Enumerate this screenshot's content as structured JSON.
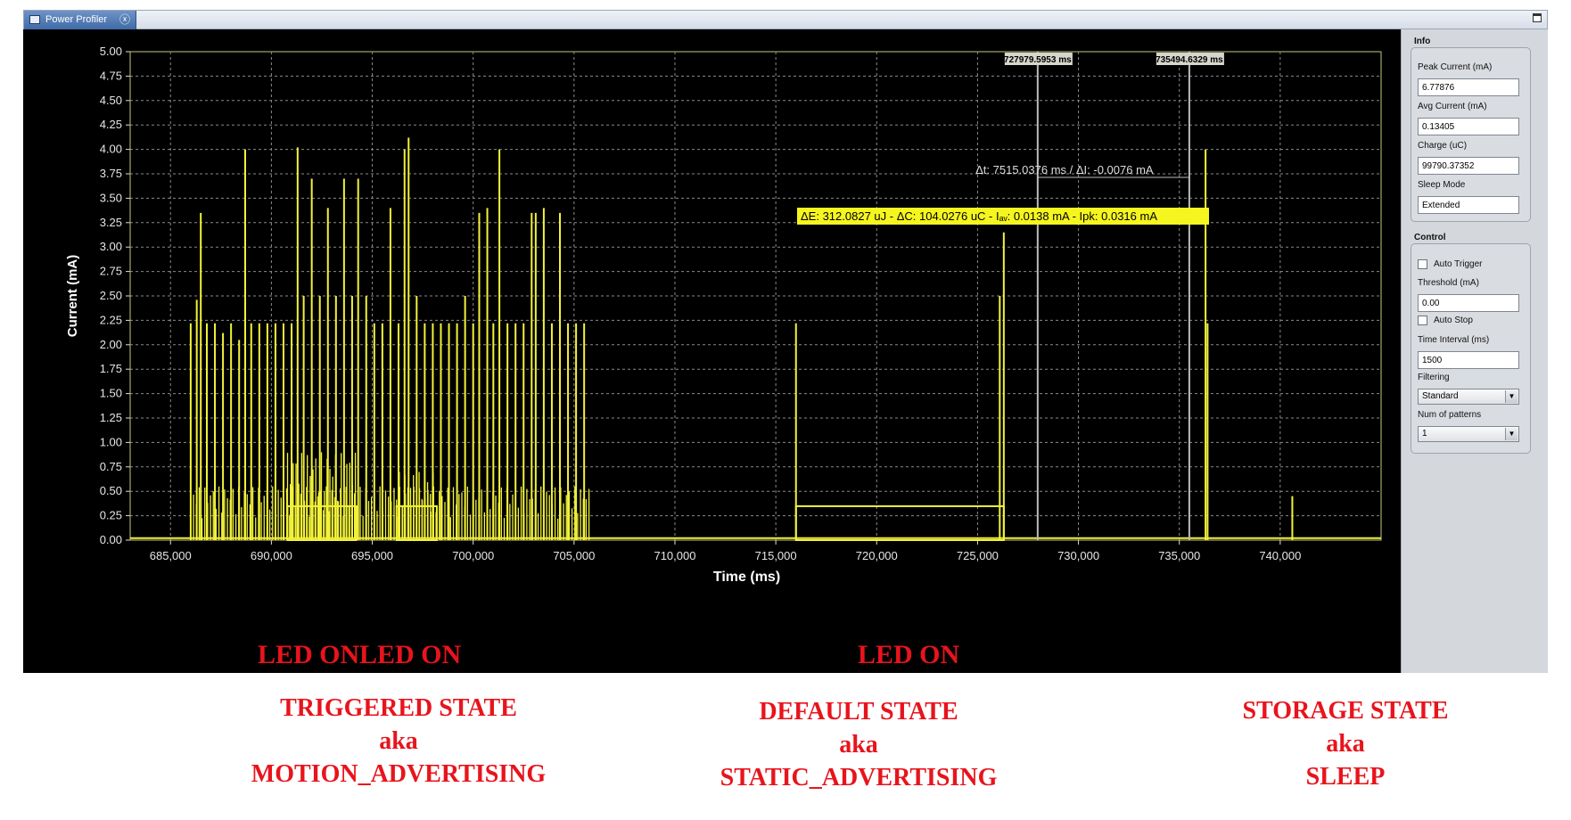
{
  "tab": {
    "title": "Power Profiler",
    "close_glyph": "ⓧ"
  },
  "info": {
    "title": "Info",
    "peak_current_label": "Peak Current (mA)",
    "peak_current": "6.77876",
    "avg_current_label": "Avg Current (mA)",
    "avg_current": "0.13405",
    "charge_label": "Charge (uC)",
    "charge": "99790.37352",
    "sleep_mode_label": "Sleep Mode",
    "sleep_mode": "Extended"
  },
  "control": {
    "title": "Control",
    "auto_trigger_label": "Auto Trigger",
    "auto_trigger_checked": false,
    "threshold_label": "Threshold (mA)",
    "threshold": "0.00",
    "auto_stop_label": "Auto Stop",
    "auto_stop_checked": false,
    "time_interval_label": "Time Interval (ms)",
    "time_interval": "1500",
    "filtering_label": "Filtering",
    "filtering": "Standard",
    "num_patterns_label": "Num of patterns",
    "num_patterns": "1"
  },
  "annotations": {
    "led_on_1": "LED ON",
    "led_on_2": "LED ON",
    "led_on_3": "LED ON",
    "triggered_state": [
      "TRIGGERED STATE",
      "aka",
      "MOTION_ADVERTISING"
    ],
    "default_state": [
      "DEFAULT STATE",
      "aka",
      "STATIC_ADVERTISING"
    ],
    "storage_state": [
      "STORAGE STATE",
      "aka",
      "SLEEP"
    ]
  },
  "colors": {
    "trace": "#f2f23a",
    "accent_text": "#e8141c",
    "plot_bg": "#000000",
    "grid": "#8a8a8a"
  },
  "chart_data": {
    "type": "line",
    "xlabel": "Time (ms)",
    "ylabel": "Current (mA)",
    "xlim": [
      683000,
      745000
    ],
    "ylim": [
      0,
      5
    ],
    "x_ticks": [
      685000,
      690000,
      695000,
      700000,
      705000,
      710000,
      715000,
      720000,
      725000,
      730000,
      735000,
      740000
    ],
    "x_tick_labels": [
      "685,000",
      "690,000",
      "695,000",
      "700,000",
      "705,000",
      "710,000",
      "715,000",
      "720,000",
      "725,000",
      "730,000",
      "735,000",
      "740,000"
    ],
    "y_ticks": [
      0,
      0.25,
      0.5,
      0.75,
      1,
      1.25,
      1.5,
      1.75,
      2,
      2.25,
      2.5,
      2.75,
      3,
      3.25,
      3.5,
      3.75,
      4,
      4.25,
      4.5,
      4.75,
      5
    ],
    "y_tick_labels": [
      "0.00",
      "0.25",
      "0.50",
      "0.75",
      "1.00",
      "1.25",
      "1.50",
      "1.75",
      "2.00",
      "2.25",
      "2.50",
      "2.75",
      "3.00",
      "3.25",
      "3.50",
      "3.75",
      "4.00",
      "4.25",
      "4.50",
      "4.75",
      "5.00"
    ],
    "grid": true,
    "baseline": 0.02,
    "spikes": [
      {
        "x": 686000,
        "y": 2.22
      },
      {
        "x": 686300,
        "y": 2.46
      },
      {
        "x": 686500,
        "y": 3.35
      },
      {
        "x": 686800,
        "y": 2.22
      },
      {
        "x": 687200,
        "y": 2.22
      },
      {
        "x": 687600,
        "y": 2.12
      },
      {
        "x": 688000,
        "y": 2.22
      },
      {
        "x": 688400,
        "y": 2.05
      },
      {
        "x": 688700,
        "y": 4.0
      },
      {
        "x": 689000,
        "y": 2.22
      },
      {
        "x": 689400,
        "y": 2.22
      },
      {
        "x": 689800,
        "y": 2.22
      },
      {
        "x": 690200,
        "y": 2.22
      },
      {
        "x": 690600,
        "y": 2.22
      },
      {
        "x": 691000,
        "y": 2.22
      },
      {
        "x": 691300,
        "y": 4.02
      },
      {
        "x": 691600,
        "y": 2.5
      },
      {
        "x": 692000,
        "y": 3.7
      },
      {
        "x": 692400,
        "y": 2.5
      },
      {
        "x": 692800,
        "y": 3.4
      },
      {
        "x": 693200,
        "y": 2.5
      },
      {
        "x": 693600,
        "y": 3.7
      },
      {
        "x": 694000,
        "y": 2.5
      },
      {
        "x": 694300,
        "y": 3.7
      },
      {
        "x": 694700,
        "y": 2.5
      },
      {
        "x": 695100,
        "y": 2.22
      },
      {
        "x": 695500,
        "y": 2.22
      },
      {
        "x": 695900,
        "y": 3.4
      },
      {
        "x": 696300,
        "y": 2.22
      },
      {
        "x": 696600,
        "y": 4.0
      },
      {
        "x": 696800,
        "y": 4.12
      },
      {
        "x": 697200,
        "y": 2.5
      },
      {
        "x": 697600,
        "y": 2.22
      },
      {
        "x": 698000,
        "y": 2.22
      },
      {
        "x": 698400,
        "y": 2.22
      },
      {
        "x": 698800,
        "y": 2.22
      },
      {
        "x": 699200,
        "y": 2.22
      },
      {
        "x": 699600,
        "y": 2.5
      },
      {
        "x": 700000,
        "y": 2.22
      },
      {
        "x": 700300,
        "y": 3.35
      },
      {
        "x": 700700,
        "y": 3.4
      },
      {
        "x": 701000,
        "y": 2.22
      },
      {
        "x": 701300,
        "y": 4.0
      },
      {
        "x": 701700,
        "y": 2.22
      },
      {
        "x": 702100,
        "y": 2.22
      },
      {
        "x": 702500,
        "y": 2.22
      },
      {
        "x": 702900,
        "y": 3.35
      },
      {
        "x": 703100,
        "y": 3.35
      },
      {
        "x": 703500,
        "y": 3.4
      },
      {
        "x": 703900,
        "y": 2.22
      },
      {
        "x": 704300,
        "y": 3.35
      },
      {
        "x": 704700,
        "y": 2.22
      },
      {
        "x": 705100,
        "y": 2.22
      },
      {
        "x": 705500,
        "y": 2.22
      },
      {
        "x": 716000,
        "y": 2.22
      },
      {
        "x": 726100,
        "y": 2.5
      },
      {
        "x": 726300,
        "y": 3.15
      },
      {
        "x": 736300,
        "y": 4.0
      },
      {
        "x": 736400,
        "y": 2.22
      },
      {
        "x": 740600,
        "y": 0.45
      }
    ],
    "led_on_segments": [
      {
        "start": 690800,
        "end": 694200,
        "level": 0.32
      },
      {
        "start": 696200,
        "end": 698200,
        "level": 0.32
      },
      {
        "start": 716000,
        "end": 726300,
        "level": 0.32
      }
    ],
    "cursors": [
      {
        "x": 727979.5953,
        "label": "727979.5953 ms"
      },
      {
        "x": 735494.6329,
        "label": "735494.6329 ms"
      }
    ],
    "delta_annotation": "Δt: 7515.0376 ms / ΔI: -0.0076 mA",
    "energy_annotation": "ΔE: 312.0827 uJ - ΔC: 104.0276 uC - Iₐᵥ: 0.0138 mA - Ipk: 0.0316 mA"
  }
}
